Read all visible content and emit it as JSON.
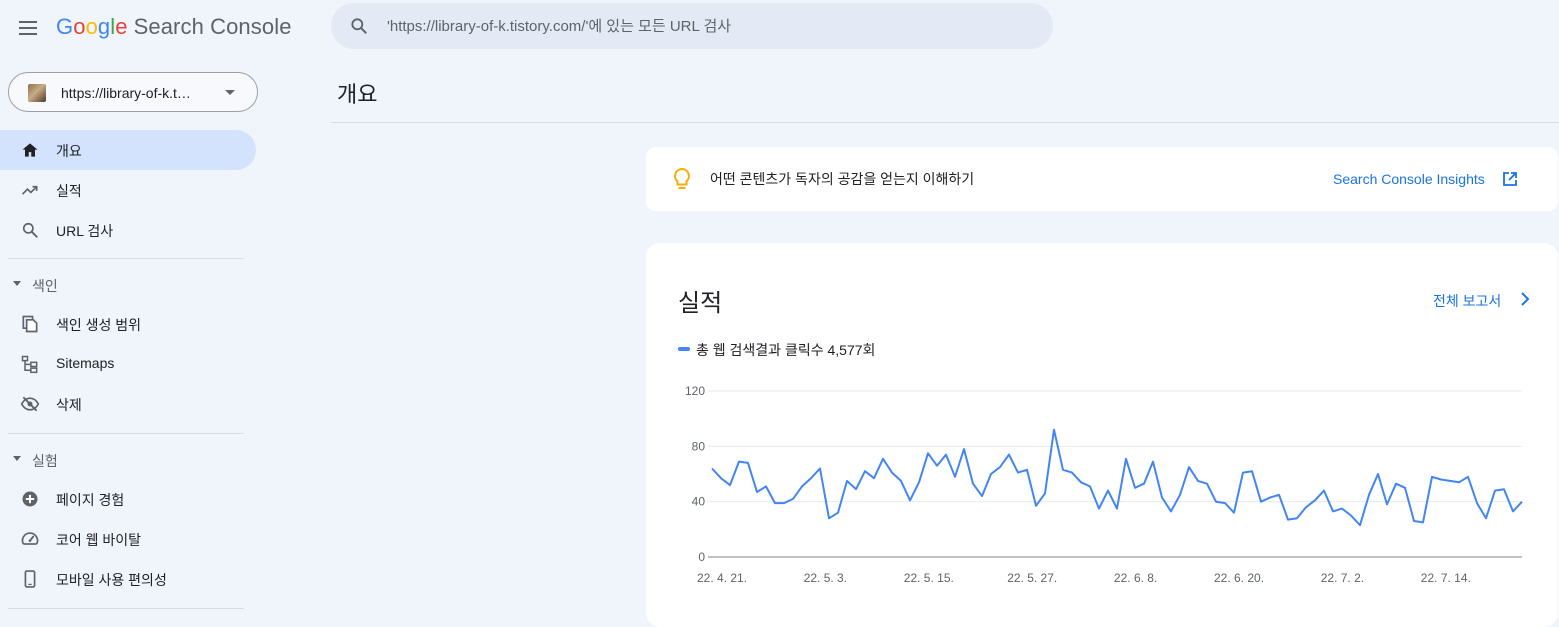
{
  "header": {
    "logo": {
      "g1": "G",
      "o1": "o",
      "o2": "o",
      "g2": "g",
      "l": "l",
      "e": "e",
      "product": "Search Console"
    },
    "search_placeholder": "'https://library-of-k.tistory.com/'에 있는 모든 URL 검사"
  },
  "sidebar": {
    "property_url": "https://library-of-k.t…",
    "top_items": [
      {
        "label": "개요",
        "icon": "home-icon",
        "active": true
      },
      {
        "label": "실적",
        "icon": "trending-up-icon"
      },
      {
        "label": "URL 검사",
        "icon": "search-icon"
      }
    ],
    "sections": [
      {
        "label": "색인",
        "items": [
          {
            "label": "색인 생성 범위",
            "icon": "file-copy-icon"
          },
          {
            "label": "Sitemaps",
            "icon": "sitemap-icon"
          },
          {
            "label": "삭제",
            "icon": "visibility-off-icon"
          }
        ]
      },
      {
        "label": "실험",
        "items": [
          {
            "label": "페이지 경험",
            "icon": "plus-circle-icon"
          },
          {
            "label": "코어 웹 바이탈",
            "icon": "speedometer-icon"
          },
          {
            "label": "모바일 사용 편의성",
            "icon": "smartphone-icon"
          }
        ]
      }
    ]
  },
  "main": {
    "page_title": "개요",
    "insight": {
      "text": "어떤 콘텐츠가 독자의 공감을 얻는지 이해하기",
      "link": "Search Console Insights",
      "icon": "lightbulb-icon"
    },
    "performance": {
      "title": "실적",
      "full_report": "전체 보고서",
      "legend": "총 웹 검색결과 클릭수 4,577회"
    }
  },
  "colors": {
    "accent": "#1a73e8",
    "series": "#4285f4",
    "active_nav": "#d3e3fd",
    "bulb": "#f9ab00"
  },
  "chart_data": {
    "type": "line",
    "title": "",
    "xlabel": "",
    "ylabel": "",
    "ylim": [
      0,
      120
    ],
    "y_ticks": [
      0,
      40,
      80,
      120
    ],
    "x_tick_labels": [
      "22. 4. 21.",
      "22. 5. 3.",
      "22. 5. 15.",
      "22. 5. 27.",
      "22. 6. 8.",
      "22. 6. 20.",
      "22. 7. 2.",
      "22. 7. 14."
    ],
    "x_start": "2022-04-21",
    "x_end": "2022-07-24",
    "grid": true,
    "series": [
      {
        "name": "총 웹 검색결과 클릭수",
        "values": [
          64,
          57,
          52,
          69,
          68,
          47,
          51,
          39,
          39,
          42,
          51,
          57,
          64,
          28,
          32,
          55,
          49,
          62,
          57,
          71,
          61,
          55,
          41,
          54,
          75,
          66,
          74,
          58,
          78,
          53,
          44,
          60,
          65,
          74,
          61,
          63,
          37,
          46,
          92,
          63,
          61,
          54,
          51,
          35,
          48,
          35,
          71,
          50,
          53,
          69,
          43,
          33,
          45,
          65,
          55,
          53,
          40,
          39,
          32,
          61,
          62,
          40,
          43,
          45,
          27,
          28,
          36,
          41,
          48,
          33,
          35,
          30,
          23,
          45,
          60,
          38,
          53,
          50,
          26,
          25,
          58,
          56,
          55,
          54,
          58,
          39,
          28,
          48,
          49,
          33,
          40
        ]
      }
    ]
  }
}
